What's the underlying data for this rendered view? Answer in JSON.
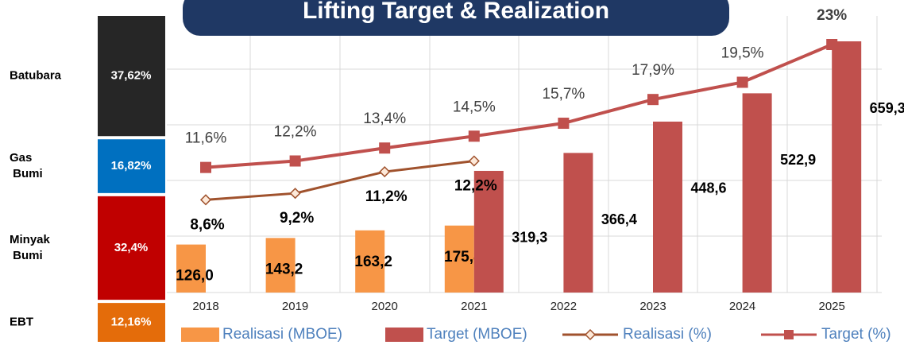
{
  "chart_data": [
    {
      "type": "stacked-bar",
      "categories": [
        "Batubara",
        "Gas Bumi",
        "Minyak Bumi",
        "EBT"
      ],
      "values": [
        37.62,
        16.82,
        32.4,
        12.16
      ],
      "value_labels": [
        "37,62%",
        "16,82%",
        "32,4%",
        "12,16%"
      ],
      "colors": [
        "#262626",
        "#0070c0",
        "#c00000",
        "#e46c0a"
      ]
    },
    {
      "type": "bar",
      "title": "Lifting Target & Realization",
      "categories": [
        "2018",
        "2019",
        "2020",
        "2021",
        "2022",
        "2023",
        "2024",
        "2025"
      ],
      "series": [
        {
          "name": "Realisasi (MBOE)",
          "type": "bar",
          "color": "#f79646",
          "values": [
            126.0,
            143.2,
            163.2,
            175.8,
            null,
            null,
            null,
            null
          ],
          "value_labels": [
            "126,0",
            "143,2",
            "163,2",
            "175,8",
            null,
            null,
            null,
            null
          ]
        },
        {
          "name": "Target (MBOE)",
          "type": "bar",
          "color": "#c0504d",
          "values": [
            null,
            null,
            null,
            319.3,
            366.4,
            448.6,
            522.9,
            659.3
          ],
          "value_labels": [
            null,
            null,
            null,
            "319,3",
            "366,4",
            "448,6",
            "522,9",
            "659,3"
          ]
        },
        {
          "name": "Realisasi (%)",
          "type": "line",
          "color": "#a0522d",
          "values": [
            8.6,
            9.2,
            11.2,
            12.2,
            null,
            null,
            null,
            null
          ],
          "value_labels": [
            "8,6%",
            "9,2%",
            "11,2%",
            "12,2%",
            null,
            null,
            null,
            null
          ]
        },
        {
          "name": "Target (%)",
          "type": "line",
          "color": "#c0504d",
          "values": [
            11.6,
            12.2,
            13.4,
            14.5,
            15.7,
            17.9,
            19.5,
            23
          ],
          "value_labels": [
            "11,6%",
            "12,2%",
            "13,4%",
            "14,5%",
            "15,7%",
            "17,9%",
            "19,5%",
            "23%"
          ]
        }
      ]
    }
  ]
}
